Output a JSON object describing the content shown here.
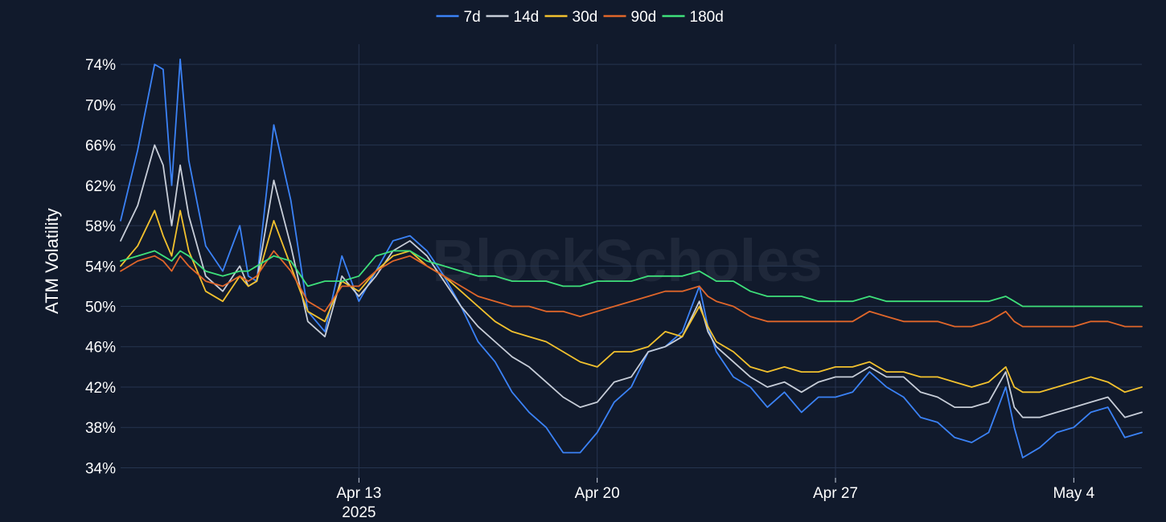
{
  "watermark": "BlockScholes",
  "colors": {
    "background": "#111a2c",
    "grid": "#26344f",
    "text": "#ffffff"
  },
  "chart_data": {
    "type": "line",
    "ylabel": "ATM Volatility",
    "ylim": [
      33,
      76
    ],
    "y_ticks": [
      34,
      38,
      42,
      46,
      50,
      54,
      58,
      62,
      66,
      70,
      74
    ],
    "y_tick_labels": [
      "34%",
      "38%",
      "42%",
      "46%",
      "50%",
      "54%",
      "58%",
      "62%",
      "66%",
      "70%",
      "74%"
    ],
    "x_range": [
      "2025-04-06",
      "2025-05-06"
    ],
    "x_ticks": [
      {
        "date": "2025-04-13",
        "label": "Apr 13",
        "sublabel": "2025"
      },
      {
        "date": "2025-04-20",
        "label": "Apr 20",
        "sublabel": ""
      },
      {
        "date": "2025-04-27",
        "label": "Apr 27",
        "sublabel": ""
      },
      {
        "date": "2025-05-04",
        "label": "May 4",
        "sublabel": ""
      }
    ],
    "legend_position": "top-center",
    "grid": true,
    "series": [
      {
        "name": "7d",
        "color": "#3b82f6",
        "x": [
          "2025-04-06",
          "2025-04-06 12:00",
          "2025-04-07",
          "2025-04-07 06:00",
          "2025-04-07 12:00",
          "2025-04-07 18:00",
          "2025-04-08",
          "2025-04-08 12:00",
          "2025-04-09",
          "2025-04-09 12:00",
          "2025-04-09 18:00",
          "2025-04-10",
          "2025-04-10 12:00",
          "2025-04-11",
          "2025-04-11 12:00",
          "2025-04-12",
          "2025-04-12 12:00",
          "2025-04-13",
          "2025-04-13 12:00",
          "2025-04-14",
          "2025-04-14 12:00",
          "2025-04-15",
          "2025-04-15 12:00",
          "2025-04-16",
          "2025-04-16 12:00",
          "2025-04-17",
          "2025-04-17 12:00",
          "2025-04-18",
          "2025-04-18 12:00",
          "2025-04-19",
          "2025-04-19 12:00",
          "2025-04-20",
          "2025-04-20 12:00",
          "2025-04-21",
          "2025-04-21 12:00",
          "2025-04-22",
          "2025-04-22 12:00",
          "2025-04-23",
          "2025-04-23 06:00",
          "2025-04-23 12:00",
          "2025-04-24",
          "2025-04-24 12:00",
          "2025-04-25",
          "2025-04-25 12:00",
          "2025-04-26",
          "2025-04-26 12:00",
          "2025-04-27",
          "2025-04-27 12:00",
          "2025-04-28",
          "2025-04-28 12:00",
          "2025-04-29",
          "2025-04-29 12:00",
          "2025-04-30",
          "2025-04-30 12:00",
          "2025-05-01",
          "2025-05-01 12:00",
          "2025-05-02",
          "2025-05-02 06:00",
          "2025-05-02 12:00",
          "2025-05-03",
          "2025-05-03 12:00",
          "2025-05-04",
          "2025-05-04 12:00",
          "2025-05-05",
          "2025-05-05 12:00",
          "2025-05-06"
        ],
        "values": [
          58.5,
          65.5,
          74.0,
          73.5,
          62.0,
          74.5,
          64.5,
          56.0,
          53.5,
          58.0,
          53.0,
          52.5,
          68.0,
          60.5,
          49.5,
          47.5,
          55.0,
          50.5,
          53.5,
          56.5,
          57.0,
          55.5,
          53.0,
          50.0,
          46.5,
          44.5,
          41.5,
          39.5,
          38.0,
          35.5,
          35.5,
          37.5,
          40.5,
          42.0,
          45.5,
          46.0,
          47.5,
          52.0,
          48.0,
          45.5,
          43.0,
          42.0,
          40.0,
          41.5,
          39.5,
          41.0,
          41.0,
          41.5,
          43.5,
          42.0,
          41.0,
          39.0,
          38.5,
          37.0,
          36.5,
          37.5,
          42.0,
          38.0,
          35.0,
          36.0,
          37.5,
          38.0,
          39.5,
          40.0,
          37.0,
          37.5
        ]
      },
      {
        "name": "14d",
        "color": "#c7cdd8",
        "x": [
          "2025-04-06",
          "2025-04-06 12:00",
          "2025-04-07",
          "2025-04-07 06:00",
          "2025-04-07 12:00",
          "2025-04-07 18:00",
          "2025-04-08",
          "2025-04-08 12:00",
          "2025-04-09",
          "2025-04-09 12:00",
          "2025-04-09 18:00",
          "2025-04-10",
          "2025-04-10 12:00",
          "2025-04-11",
          "2025-04-11 12:00",
          "2025-04-12",
          "2025-04-12 12:00",
          "2025-04-13",
          "2025-04-13 12:00",
          "2025-04-14",
          "2025-04-14 12:00",
          "2025-04-15",
          "2025-04-15 12:00",
          "2025-04-16",
          "2025-04-16 12:00",
          "2025-04-17",
          "2025-04-17 12:00",
          "2025-04-18",
          "2025-04-18 12:00",
          "2025-04-19",
          "2025-04-19 12:00",
          "2025-04-20",
          "2025-04-20 12:00",
          "2025-04-21",
          "2025-04-21 12:00",
          "2025-04-22",
          "2025-04-22 12:00",
          "2025-04-23",
          "2025-04-23 06:00",
          "2025-04-23 12:00",
          "2025-04-24",
          "2025-04-24 12:00",
          "2025-04-25",
          "2025-04-25 12:00",
          "2025-04-26",
          "2025-04-26 12:00",
          "2025-04-27",
          "2025-04-27 12:00",
          "2025-04-28",
          "2025-04-28 12:00",
          "2025-04-29",
          "2025-04-29 12:00",
          "2025-04-30",
          "2025-04-30 12:00",
          "2025-05-01",
          "2025-05-01 12:00",
          "2025-05-02",
          "2025-05-02 06:00",
          "2025-05-02 12:00",
          "2025-05-03",
          "2025-05-03 12:00",
          "2025-05-04",
          "2025-05-04 12:00",
          "2025-05-05",
          "2025-05-05 12:00",
          "2025-05-06"
        ],
        "values": [
          56.5,
          60.0,
          66.0,
          64.0,
          58.0,
          64.0,
          59.0,
          53.0,
          51.5,
          54.0,
          52.0,
          52.5,
          62.5,
          56.0,
          48.5,
          47.0,
          53.0,
          51.0,
          53.0,
          55.5,
          56.5,
          55.0,
          52.5,
          50.0,
          48.0,
          46.5,
          45.0,
          44.0,
          42.5,
          41.0,
          40.0,
          40.5,
          42.5,
          43.0,
          45.5,
          46.0,
          47.0,
          50.5,
          47.5,
          46.0,
          44.5,
          43.0,
          42.0,
          42.5,
          41.5,
          42.5,
          43.0,
          43.0,
          44.0,
          43.0,
          43.0,
          41.5,
          41.0,
          40.0,
          40.0,
          40.5,
          43.5,
          40.0,
          39.0,
          39.0,
          39.5,
          40.0,
          40.5,
          41.0,
          39.0,
          39.5
        ]
      },
      {
        "name": "30d",
        "color": "#f2c12e",
        "x": [
          "2025-04-06",
          "2025-04-06 12:00",
          "2025-04-07",
          "2025-04-07 06:00",
          "2025-04-07 12:00",
          "2025-04-07 18:00",
          "2025-04-08",
          "2025-04-08 12:00",
          "2025-04-09",
          "2025-04-09 12:00",
          "2025-04-09 18:00",
          "2025-04-10",
          "2025-04-10 12:00",
          "2025-04-11",
          "2025-04-11 12:00",
          "2025-04-12",
          "2025-04-12 12:00",
          "2025-04-13",
          "2025-04-13 12:00",
          "2025-04-14",
          "2025-04-14 12:00",
          "2025-04-15",
          "2025-04-15 12:00",
          "2025-04-16",
          "2025-04-16 12:00",
          "2025-04-17",
          "2025-04-17 12:00",
          "2025-04-18",
          "2025-04-18 12:00",
          "2025-04-19",
          "2025-04-19 12:00",
          "2025-04-20",
          "2025-04-20 12:00",
          "2025-04-21",
          "2025-04-21 12:00",
          "2025-04-22",
          "2025-04-22 12:00",
          "2025-04-23",
          "2025-04-23 06:00",
          "2025-04-23 12:00",
          "2025-04-24",
          "2025-04-24 12:00",
          "2025-04-25",
          "2025-04-25 12:00",
          "2025-04-26",
          "2025-04-26 12:00",
          "2025-04-27",
          "2025-04-27 12:00",
          "2025-04-28",
          "2025-04-28 12:00",
          "2025-04-29",
          "2025-04-29 12:00",
          "2025-04-30",
          "2025-04-30 12:00",
          "2025-05-01",
          "2025-05-01 12:00",
          "2025-05-02",
          "2025-05-02 06:00",
          "2025-05-02 12:00",
          "2025-05-03",
          "2025-05-03 12:00",
          "2025-05-04",
          "2025-05-04 12:00",
          "2025-05-05",
          "2025-05-05 12:00",
          "2025-05-06"
        ],
        "values": [
          54.0,
          56.0,
          59.5,
          57.0,
          55.0,
          59.5,
          55.5,
          51.5,
          50.5,
          53.0,
          52.0,
          52.5,
          58.5,
          54.0,
          49.5,
          48.5,
          52.5,
          51.5,
          53.5,
          55.0,
          55.5,
          54.0,
          53.0,
          51.5,
          50.0,
          48.5,
          47.5,
          47.0,
          46.5,
          45.5,
          44.5,
          44.0,
          45.5,
          45.5,
          46.0,
          47.5,
          47.0,
          50.0,
          48.0,
          46.5,
          45.5,
          44.0,
          43.5,
          44.0,
          43.5,
          43.5,
          44.0,
          44.0,
          44.5,
          43.5,
          43.5,
          43.0,
          43.0,
          42.5,
          42.0,
          42.5,
          44.0,
          42.0,
          41.5,
          41.5,
          42.0,
          42.5,
          43.0,
          42.5,
          41.5,
          42.0
        ]
      },
      {
        "name": "90d",
        "color": "#e0662a",
        "x": [
          "2025-04-06",
          "2025-04-06 12:00",
          "2025-04-07",
          "2025-04-07 06:00",
          "2025-04-07 12:00",
          "2025-04-07 18:00",
          "2025-04-08",
          "2025-04-08 12:00",
          "2025-04-09",
          "2025-04-09 12:00",
          "2025-04-09 18:00",
          "2025-04-10",
          "2025-04-10 12:00",
          "2025-04-11",
          "2025-04-11 12:00",
          "2025-04-12",
          "2025-04-12 12:00",
          "2025-04-13",
          "2025-04-13 12:00",
          "2025-04-14",
          "2025-04-14 12:00",
          "2025-04-15",
          "2025-04-15 12:00",
          "2025-04-16",
          "2025-04-16 12:00",
          "2025-04-17",
          "2025-04-17 12:00",
          "2025-04-18",
          "2025-04-18 12:00",
          "2025-04-19",
          "2025-04-19 12:00",
          "2025-04-20",
          "2025-04-20 12:00",
          "2025-04-21",
          "2025-04-21 12:00",
          "2025-04-22",
          "2025-04-22 12:00",
          "2025-04-23",
          "2025-04-23 06:00",
          "2025-04-23 12:00",
          "2025-04-24",
          "2025-04-24 12:00",
          "2025-04-25",
          "2025-04-25 12:00",
          "2025-04-26",
          "2025-04-26 12:00",
          "2025-04-27",
          "2025-04-27 12:00",
          "2025-04-28",
          "2025-04-28 12:00",
          "2025-04-29",
          "2025-04-29 12:00",
          "2025-04-30",
          "2025-04-30 12:00",
          "2025-05-01",
          "2025-05-01 12:00",
          "2025-05-02",
          "2025-05-02 06:00",
          "2025-05-02 12:00",
          "2025-05-03",
          "2025-05-03 12:00",
          "2025-05-04",
          "2025-05-04 12:00",
          "2025-05-05",
          "2025-05-05 12:00",
          "2025-05-06"
        ],
        "values": [
          53.5,
          54.5,
          55.0,
          54.5,
          53.5,
          55.0,
          54.0,
          52.5,
          52.0,
          53.0,
          52.5,
          53.0,
          55.5,
          53.5,
          50.5,
          49.5,
          52.0,
          52.0,
          53.5,
          54.5,
          55.0,
          54.0,
          53.0,
          52.0,
          51.0,
          50.5,
          50.0,
          50.0,
          49.5,
          49.5,
          49.0,
          49.5,
          50.0,
          50.5,
          51.0,
          51.5,
          51.5,
          52.0,
          51.0,
          50.5,
          50.0,
          49.0,
          48.5,
          48.5,
          48.5,
          48.5,
          48.5,
          48.5,
          49.5,
          49.0,
          48.5,
          48.5,
          48.5,
          48.0,
          48.0,
          48.5,
          49.5,
          48.5,
          48.0,
          48.0,
          48.0,
          48.0,
          48.5,
          48.5,
          48.0,
          48.0
        ]
      },
      {
        "name": "180d",
        "color": "#3ee07a",
        "x": [
          "2025-04-06",
          "2025-04-06 12:00",
          "2025-04-07",
          "2025-04-07 06:00",
          "2025-04-07 12:00",
          "2025-04-07 18:00",
          "2025-04-08",
          "2025-04-08 12:00",
          "2025-04-09",
          "2025-04-09 12:00",
          "2025-04-09 18:00",
          "2025-04-10",
          "2025-04-10 12:00",
          "2025-04-11",
          "2025-04-11 12:00",
          "2025-04-12",
          "2025-04-12 12:00",
          "2025-04-13",
          "2025-04-13 12:00",
          "2025-04-14",
          "2025-04-14 12:00",
          "2025-04-15",
          "2025-04-15 12:00",
          "2025-04-16",
          "2025-04-16 12:00",
          "2025-04-17",
          "2025-04-17 12:00",
          "2025-04-18",
          "2025-04-18 12:00",
          "2025-04-19",
          "2025-04-19 12:00",
          "2025-04-20",
          "2025-04-20 12:00",
          "2025-04-21",
          "2025-04-21 12:00",
          "2025-04-22",
          "2025-04-22 12:00",
          "2025-04-23",
          "2025-04-23 06:00",
          "2025-04-23 12:00",
          "2025-04-24",
          "2025-04-24 12:00",
          "2025-04-25",
          "2025-04-25 12:00",
          "2025-04-26",
          "2025-04-26 12:00",
          "2025-04-27",
          "2025-04-27 12:00",
          "2025-04-28",
          "2025-04-28 12:00",
          "2025-04-29",
          "2025-04-29 12:00",
          "2025-04-30",
          "2025-04-30 12:00",
          "2025-05-01",
          "2025-05-01 12:00",
          "2025-05-02",
          "2025-05-02 06:00",
          "2025-05-02 12:00",
          "2025-05-03",
          "2025-05-03 12:00",
          "2025-05-04",
          "2025-05-04 12:00",
          "2025-05-05",
          "2025-05-05 12:00",
          "2025-05-06"
        ],
        "values": [
          54.5,
          55.0,
          55.5,
          55.0,
          54.5,
          55.5,
          55.0,
          53.5,
          53.0,
          53.5,
          53.5,
          54.0,
          55.0,
          54.5,
          52.0,
          52.5,
          52.5,
          53.0,
          55.0,
          55.5,
          55.5,
          54.5,
          54.0,
          53.5,
          53.0,
          53.0,
          52.5,
          52.5,
          52.5,
          52.0,
          52.0,
          52.5,
          52.5,
          52.5,
          53.0,
          53.0,
          53.0,
          53.5,
          53.0,
          52.5,
          52.5,
          51.5,
          51.0,
          51.0,
          51.0,
          50.5,
          50.5,
          50.5,
          51.0,
          50.5,
          50.5,
          50.5,
          50.5,
          50.5,
          50.5,
          50.5,
          51.0,
          50.5,
          50.0,
          50.0,
          50.0,
          50.0,
          50.0,
          50.0,
          50.0,
          50.0
        ]
      }
    ]
  }
}
